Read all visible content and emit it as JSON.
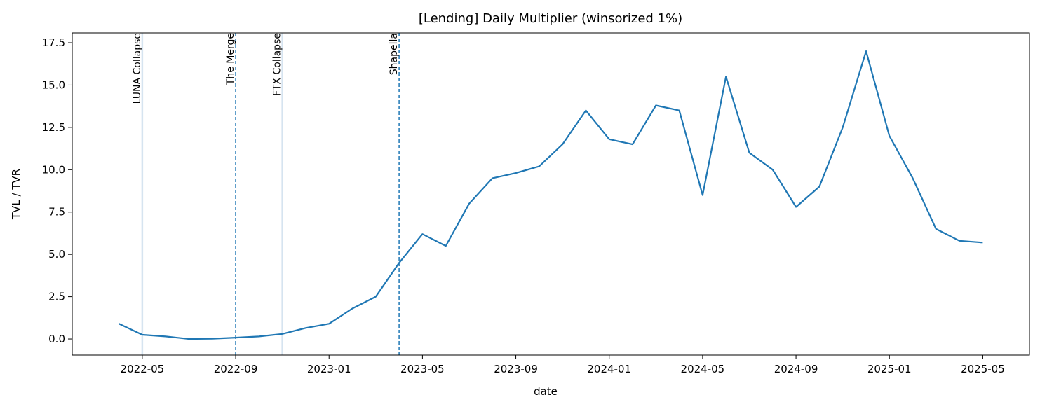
{
  "chart_data": {
    "type": "line",
    "title": "[Lending] Daily Multiplier (winsorized 1%)",
    "xlabel": "date",
    "ylabel": "TVL / TVR",
    "x": [
      "2022-04",
      "2022-05",
      "2022-06",
      "2022-07",
      "2022-08",
      "2022-09",
      "2022-10",
      "2022-11",
      "2022-12",
      "2023-01",
      "2023-02",
      "2023-03",
      "2023-04",
      "2023-05",
      "2023-06",
      "2023-07",
      "2023-08",
      "2023-09",
      "2023-10",
      "2023-11",
      "2023-12",
      "2024-01",
      "2024-02",
      "2024-03",
      "2024-04",
      "2024-05",
      "2024-06",
      "2024-07",
      "2024-08",
      "2024-09",
      "2024-10",
      "2024-11",
      "2024-12",
      "2025-01",
      "2025-02",
      "2025-03",
      "2025-04",
      "2025-05"
    ],
    "values": [
      0.9,
      0.25,
      0.15,
      0.0,
      0.02,
      0.08,
      0.15,
      0.3,
      0.65,
      0.9,
      1.8,
      2.5,
      4.5,
      6.2,
      5.5,
      8.0,
      9.5,
      9.8,
      10.2,
      11.5,
      13.5,
      11.8,
      11.5,
      13.8,
      13.5,
      8.5,
      15.5,
      11.0,
      10.0,
      7.8,
      9.0,
      12.5,
      17.0,
      12.0,
      9.5,
      6.5,
      5.8,
      5.7
    ],
    "color": "#1f77b4",
    "xlim": [
      "2022-02",
      "2025-07"
    ],
    "xticks": [
      "2022-05",
      "2022-09",
      "2023-01",
      "2023-05",
      "2023-09",
      "2024-01",
      "2024-05",
      "2024-09",
      "2025-01",
      "2025-05"
    ],
    "ylim": [
      -0.95,
      18.08
    ],
    "yticks": [
      {
        "value": 0,
        "label": "0.0"
      },
      2.5,
      {
        "value": 5,
        "label": "5.0"
      },
      7.5,
      {
        "value": 10,
        "label": "10.0"
      },
      12.5,
      {
        "value": 15,
        "label": "15.0"
      },
      17.5
    ],
    "annotations": [
      {
        "label": "LUNA Collapse",
        "x": "2022-05",
        "color": "#d6e4f0",
        "dashed": false
      },
      {
        "label": "The Merge",
        "x": "2022-09",
        "color": "#1f77b4",
        "dashed": true
      },
      {
        "label": "FTX Collapse",
        "x": "2022-11",
        "color": "#d6e4f0",
        "dashed": false
      },
      {
        "label": "Shapella",
        "x": "2023-04",
        "color": "#1f77b4",
        "dashed": true
      }
    ]
  }
}
